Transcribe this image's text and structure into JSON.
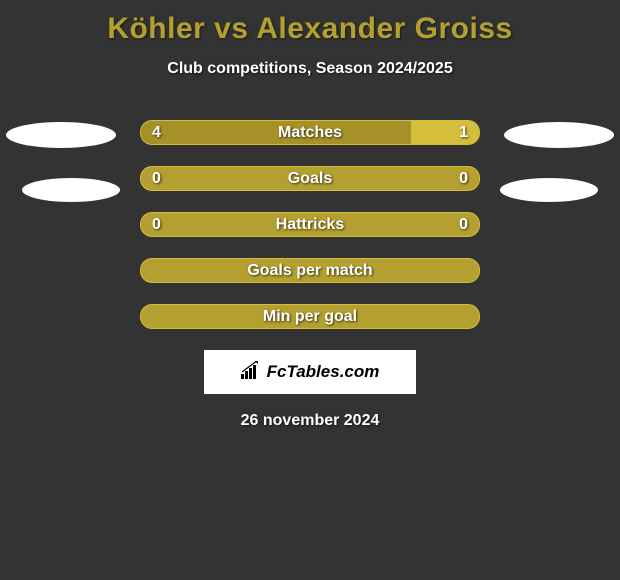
{
  "title": "Köhler vs Alexander Groiss",
  "subtitle": "Club competitions, Season 2024/2025",
  "date": "26 november 2024",
  "logo_text": "FcTables.com",
  "colors": {
    "background": "#333333",
    "accent": "#b4a030",
    "bar_left": "#a69129",
    "bar_right": "#d4be3c",
    "bar_border": "#d4be3c",
    "text": "#ffffff",
    "ellipse": "#ffffff",
    "logo_bg": "#ffffff",
    "logo_text": "#000000"
  },
  "stats": [
    {
      "label": "Matches",
      "left_val": "4",
      "right_val": "1",
      "left_pct": 80,
      "right_pct": 20,
      "show_vals": true
    },
    {
      "label": "Goals",
      "left_val": "0",
      "right_val": "0",
      "left_pct": 0,
      "right_pct": 0,
      "show_vals": true
    },
    {
      "label": "Hattricks",
      "left_val": "0",
      "right_val": "0",
      "left_pct": 0,
      "right_pct": 0,
      "show_vals": true
    },
    {
      "label": "Goals per match",
      "left_val": "",
      "right_val": "",
      "left_pct": 0,
      "right_pct": 0,
      "show_vals": false
    },
    {
      "label": "Min per goal",
      "left_val": "",
      "right_val": "",
      "left_pct": 0,
      "right_pct": 0,
      "show_vals": false
    }
  ]
}
